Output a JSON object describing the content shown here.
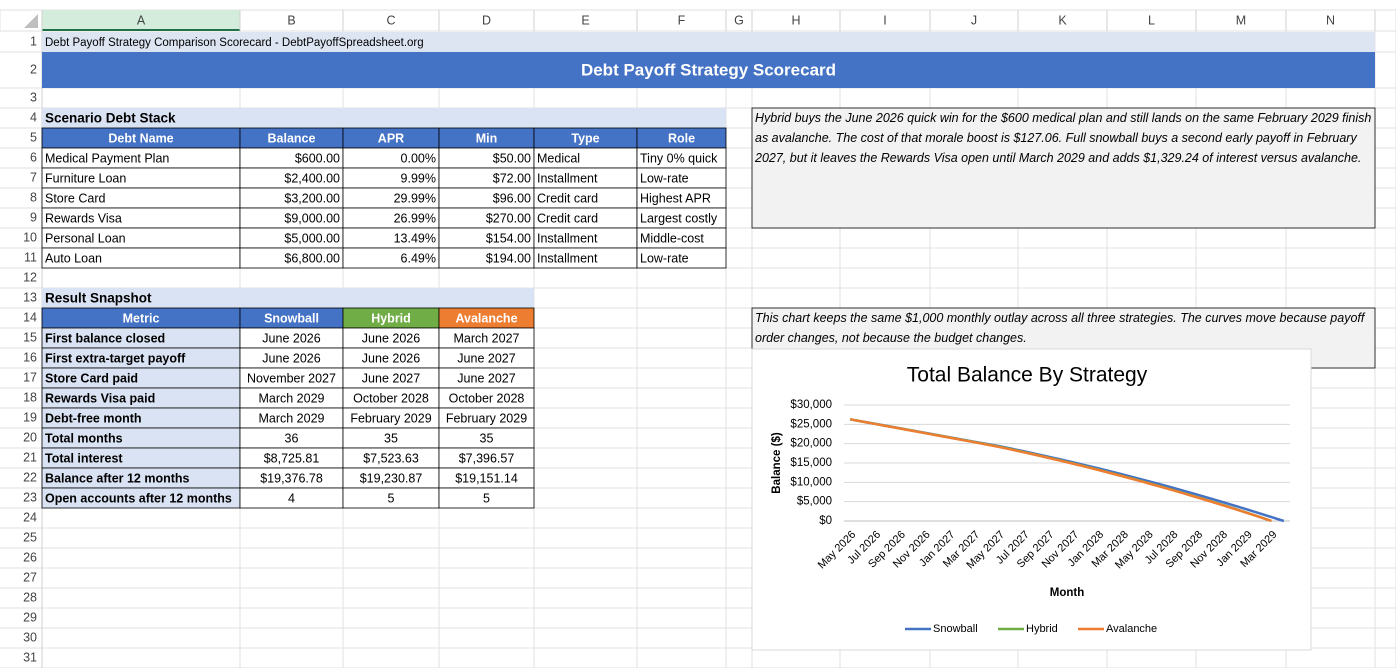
{
  "column_headers": [
    "A",
    "B",
    "C",
    "D",
    "E",
    "F",
    "G",
    "H",
    "I",
    "J",
    "K",
    "L",
    "M",
    "N"
  ],
  "row_numbers": [
    1,
    2,
    3,
    4,
    5,
    6,
    7,
    8,
    9,
    10,
    11,
    12,
    13,
    14,
    15,
    16,
    17,
    18,
    19,
    20,
    21,
    22,
    23,
    24,
    25,
    26,
    27,
    28,
    29,
    30,
    31
  ],
  "header": {
    "subtitle": "Debt Payoff Strategy Comparison Scorecard - DebtPayoffSpreadsheet.org",
    "title": "Debt Payoff Strategy Scorecard"
  },
  "debt_stack": {
    "title": "Scenario Debt Stack",
    "columns": [
      "Debt Name",
      "Balance",
      "APR",
      "Min",
      "Type",
      "Role"
    ],
    "rows": [
      [
        "Medical Payment Plan",
        "$600.00",
        "0.00%",
        "$50.00",
        "Medical",
        "Tiny 0% quick"
      ],
      [
        "Furniture Loan",
        "$2,400.00",
        "9.99%",
        "$72.00",
        "Installment",
        "Low-rate"
      ],
      [
        "Store Card",
        "$3,200.00",
        "29.99%",
        "$96.00",
        "Credit card",
        "Highest APR"
      ],
      [
        "Rewards Visa",
        "$9,000.00",
        "26.99%",
        "$270.00",
        "Credit card",
        "Largest costly"
      ],
      [
        "Personal Loan",
        "$5,000.00",
        "13.49%",
        "$154.00",
        "Installment",
        "Middle-cost"
      ],
      [
        "Auto Loan",
        "$6,800.00",
        "6.49%",
        "$194.00",
        "Installment",
        "Low-rate"
      ]
    ]
  },
  "notes": [
    "Hybrid buys the June 2026 quick win for the $600 medical plan and still lands on the same February 2029 finish as avalanche. The cost of that morale boost is $127.06. Full snowball buys a second early payoff in February 2027, but it leaves the Rewards Visa open until March 2029 and adds $1,329.24 of interest versus avalanche.",
    "This chart keeps the same $1,000 monthly outlay across all three strategies. The curves move because payoff order changes, not because the budget changes."
  ],
  "snapshot": {
    "title": "Result Snapshot",
    "columns": [
      "Metric",
      "Snowball",
      "Hybrid",
      "Avalanche"
    ],
    "column_colors": [
      "#4472c4",
      "#4472c4",
      "#70ad47",
      "#ed7d31"
    ],
    "rows": [
      [
        "First balance closed",
        "June 2026",
        "June 2026",
        "March 2027"
      ],
      [
        "First extra-target payoff",
        "June 2026",
        "June 2026",
        "June 2027"
      ],
      [
        "Store Card paid",
        "November 2027",
        "June 2027",
        "June 2027"
      ],
      [
        "Rewards Visa paid",
        "March 2029",
        "October 2028",
        "October 2028"
      ],
      [
        "Debt-free month",
        "March 2029",
        "February 2029",
        "February 2029"
      ],
      [
        "Total months",
        "36",
        "35",
        "35"
      ],
      [
        "Total interest",
        "$8,725.81",
        "$7,523.63",
        "$7,396.57"
      ],
      [
        "Balance after 12 months",
        "$19,376.78",
        "$19,230.87",
        "$19,151.14"
      ],
      [
        "Open accounts after 12 months",
        "4",
        "5",
        "5"
      ]
    ]
  },
  "chart_data": {
    "type": "line",
    "title": "Total Balance By Strategy",
    "x_label": "Month",
    "y_label": "Balance ($)",
    "categories": [
      "May 2026",
      null,
      "Jul 2026",
      null,
      "Sep 2026",
      null,
      "Nov 2026",
      null,
      "Jan 2027",
      null,
      "Mar 2027",
      null,
      "May 2027",
      null,
      "Jul 2027",
      null,
      "Sep 2027",
      null,
      "Nov 2027",
      null,
      "Jan 2028",
      null,
      "Mar 2028",
      null,
      "May 2028",
      null,
      "Jul 2028",
      null,
      "Sep 2028",
      null,
      "Nov 2028",
      null,
      "Jan 2029",
      null,
      "Mar 2029",
      null
    ],
    "ylim": [
      0,
      30000
    ],
    "yticks": [
      {
        "value": 0,
        "label": "$0"
      },
      {
        "value": 5000,
        "label": "$5,000"
      },
      {
        "value": 10000,
        "label": "$10,000"
      },
      {
        "value": 15000,
        "label": "$15,000"
      },
      {
        "value": 20000,
        "label": "$20,000"
      },
      {
        "value": 25000,
        "label": "$25,000"
      },
      {
        "value": 30000,
        "label": "$30,000"
      }
    ],
    "grid": true,
    "legend": "bottom",
    "series": [
      {
        "name": "Snowball",
        "color": "#4472c4",
        "values": [
          26300,
          25720,
          25140,
          24560,
          23980,
          23400,
          22820,
          22240,
          21660,
          21080,
          20500,
          19940,
          19380,
          18720,
          18040,
          17350,
          16640,
          15910,
          15170,
          14410,
          13640,
          12840,
          12030,
          11210,
          10360,
          9510,
          8630,
          7740,
          6830,
          5900,
          4960,
          4000,
          3030,
          2030,
          1030,
          0
        ]
      },
      {
        "name": "Hybrid",
        "color": "#70ad47",
        "values": [
          26300,
          25710,
          25110,
          24530,
          23950,
          23370,
          22780,
          22200,
          21620,
          21030,
          20450,
          19850,
          19230,
          18550,
          17850,
          17140,
          16400,
          15650,
          14880,
          14090,
          13290,
          12460,
          11620,
          10760,
          9880,
          8990,
          8070,
          7140,
          6190,
          5220,
          4240,
          3210,
          2170,
          1110,
          0,
          null
        ]
      },
      {
        "name": "Avalanche",
        "color": "#ed7d31",
        "values": [
          26300,
          25700,
          25100,
          24510,
          23920,
          23330,
          22740,
          22150,
          21560,
          20970,
          20380,
          19770,
          19150,
          18470,
          17770,
          17060,
          16320,
          15570,
          14800,
          14010,
          13210,
          12380,
          11540,
          10680,
          9800,
          8910,
          7990,
          7060,
          6110,
          5140,
          4160,
          3150,
          2130,
          1090,
          0,
          null
        ]
      }
    ]
  }
}
